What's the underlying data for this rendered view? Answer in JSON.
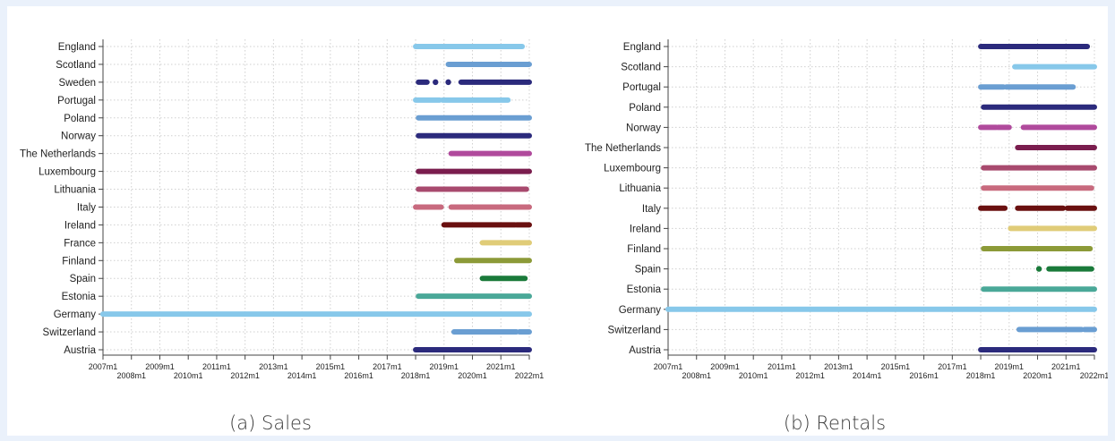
{
  "figure": {
    "captions": [
      "(a) Sales",
      "(b) Rentals"
    ]
  },
  "colors": {
    "England": "#87c8ea",
    "England_rentals": "#2b2a7c",
    "Scotland": "#6a9ed2",
    "Scotland_rentals": "#87c8ea",
    "Sweden": "#2b2a7c",
    "Portugal": "#87c8ea",
    "Portugal_rentals": "#6a9ed2",
    "Poland": "#6a9ed2",
    "Poland_rentals": "#2b2a7c",
    "Norway": "#2b2a7c",
    "Norway_rentals": "#b04a9c",
    "The Netherlands": "#b04a9c",
    "The Netherlands_rentals": "#7a1d4e",
    "Luxembourg": "#7a1d4e",
    "Luxembourg_rentals": "#a84a6e",
    "Lithuania": "#a84a6e",
    "Lithuania_rentals": "#c86a7e",
    "Italy": "#c86a7e",
    "Italy_rentals": "#6a1010",
    "Ireland": "#6a1010",
    "Ireland_rentals": "#e0cc78",
    "France": "#e0cc78",
    "Finland": "#8c9a38",
    "Spain": "#1a7a3a",
    "Estonia": "#4aa898",
    "Germany": "#87c8ea",
    "Switzerland": "#6a9ed2",
    "Austria": "#2b2a7c",
    "grid": "#cfcfcf",
    "axis": "#444444",
    "text": "#222222"
  },
  "chart_data": [
    {
      "type": "timeline",
      "caption": "(a) Sales",
      "x_ticks_upper": [
        "2007m1",
        "2009m1",
        "2011m1",
        "2013m1",
        "2015m1",
        "2017m1",
        "2019m1",
        "2021m1"
      ],
      "x_ticks_lower": [
        "2008m1",
        "2010m1",
        "2012m1",
        "2014m1",
        "2016m1",
        "2018m1",
        "2020m1",
        "2022m1"
      ],
      "xlim": [
        2007.0,
        2022.0
      ],
      "grid": true,
      "series": [
        {
          "name": "England",
          "color": "#87c8ea",
          "segments": [
            [
              2018.0,
              2021.75
            ]
          ]
        },
        {
          "name": "Scotland",
          "color": "#6a9ed2",
          "segments": [
            [
              2019.15,
              2022.0
            ]
          ]
        },
        {
          "name": "Sweden",
          "color": "#2b2a7c",
          "segments": [
            [
              2018.1,
              2018.4
            ],
            [
              2019.6,
              2022.0
            ]
          ],
          "dots": [
            2018.7,
            2019.15
          ]
        },
        {
          "name": "Portugal",
          "color": "#87c8ea",
          "segments": [
            [
              2018.0,
              2018.85
            ],
            [
              2018.95,
              2021.25
            ]
          ]
        },
        {
          "name": "Poland",
          "color": "#6a9ed2",
          "segments": [
            [
              2018.1,
              2022.0
            ]
          ]
        },
        {
          "name": "Norway",
          "color": "#2b2a7c",
          "segments": [
            [
              2018.1,
              2022.0
            ]
          ]
        },
        {
          "name": "The Netherlands",
          "color": "#b04a9c",
          "segments": [
            [
              2019.25,
              2022.0
            ]
          ]
        },
        {
          "name": "Luxembourg",
          "color": "#7a1d4e",
          "segments": [
            [
              2018.1,
              2022.0
            ]
          ]
        },
        {
          "name": "Lithuania",
          "color": "#a84a6e",
          "segments": [
            [
              2018.1,
              2021.9
            ]
          ]
        },
        {
          "name": "Italy",
          "color": "#c86a7e",
          "segments": [
            [
              2018.0,
              2018.9
            ],
            [
              2019.25,
              2022.0
            ]
          ]
        },
        {
          "name": "Ireland",
          "color": "#6a1010",
          "segments": [
            [
              2019.0,
              2021.5
            ],
            [
              2021.55,
              2022.0
            ]
          ]
        },
        {
          "name": "France",
          "color": "#e0cc78",
          "segments": [
            [
              2020.35,
              2022.0
            ]
          ]
        },
        {
          "name": "Finland",
          "color": "#8c9a38",
          "segments": [
            [
              2019.45,
              2022.0
            ]
          ]
        },
        {
          "name": "Spain",
          "color": "#1a7a3a",
          "segments": [
            [
              2020.35,
              2021.85
            ]
          ]
        },
        {
          "name": "Estonia",
          "color": "#4aa898",
          "segments": [
            [
              2018.1,
              2022.0
            ]
          ]
        },
        {
          "name": "Germany",
          "color": "#87c8ea",
          "segments": [
            [
              2007.0,
              2022.0
            ]
          ]
        },
        {
          "name": "Switzerland",
          "color": "#6a9ed2",
          "segments": [
            [
              2019.35,
              2021.55
            ],
            [
              2021.65,
              2022.0
            ]
          ]
        },
        {
          "name": "Austria",
          "color": "#2b2a7c",
          "segments": [
            [
              2018.0,
              2022.0
            ]
          ]
        }
      ]
    },
    {
      "type": "timeline",
      "caption": "(b) Rentals",
      "x_ticks_upper": [
        "2007m1",
        "2009m1",
        "2011m1",
        "2013m1",
        "2015m1",
        "2017m1",
        "2019m1",
        "2021m1"
      ],
      "x_ticks_lower": [
        "2008m1",
        "2010m1",
        "2012m1",
        "2014m1",
        "2016m1",
        "2018m1",
        "2020m1",
        "2022m1"
      ],
      "xlim": [
        2007.0,
        2022.0
      ],
      "grid": true,
      "series": [
        {
          "name": "England",
          "color": "#2b2a7c",
          "segments": [
            [
              2018.0,
              2021.75
            ]
          ]
        },
        {
          "name": "Scotland",
          "color": "#87c8ea",
          "segments": [
            [
              2019.2,
              2022.0
            ]
          ]
        },
        {
          "name": "Portugal",
          "color": "#6a9ed2",
          "segments": [
            [
              2018.0,
              2018.8
            ],
            [
              2018.9,
              2021.25
            ]
          ]
        },
        {
          "name": "Poland",
          "color": "#2b2a7c",
          "segments": [
            [
              2018.1,
              2022.0
            ]
          ]
        },
        {
          "name": "Norway",
          "color": "#b04a9c",
          "segments": [
            [
              2018.0,
              2018.55
            ],
            [
              2018.6,
              2019.0
            ],
            [
              2019.5,
              2022.0
            ]
          ]
        },
        {
          "name": "The Netherlands",
          "color": "#7a1d4e",
          "segments": [
            [
              2019.3,
              2022.0
            ]
          ]
        },
        {
          "name": "Luxembourg",
          "color": "#a84a6e",
          "segments": [
            [
              2018.1,
              2022.0
            ]
          ]
        },
        {
          "name": "Lithuania",
          "color": "#c86a7e",
          "segments": [
            [
              2018.1,
              2021.9
            ]
          ]
        },
        {
          "name": "Italy",
          "color": "#6a1010",
          "segments": [
            [
              2018.0,
              2018.85
            ],
            [
              2019.3,
              2020.9
            ],
            [
              2021.05,
              2022.0
            ]
          ]
        },
        {
          "name": "Ireland",
          "color": "#e0cc78",
          "segments": [
            [
              2019.05,
              2022.0
            ]
          ]
        },
        {
          "name": "Finland",
          "color": "#8c9a38",
          "segments": [
            [
              2018.1,
              2021.85
            ]
          ]
        },
        {
          "name": "Spain",
          "color": "#1a7a3a",
          "segments": [
            [
              2020.4,
              2021.9
            ]
          ],
          "dots": [
            2020.05
          ]
        },
        {
          "name": "Estonia",
          "color": "#4aa898",
          "segments": [
            [
              2018.1,
              2022.0
            ]
          ]
        },
        {
          "name": "Germany",
          "color": "#87c8ea",
          "segments": [
            [
              2007.0,
              2022.0
            ]
          ]
        },
        {
          "name": "Switzerland",
          "color": "#6a9ed2",
          "segments": [
            [
              2019.35,
              2021.55
            ],
            [
              2021.65,
              2022.0
            ]
          ]
        },
        {
          "name": "Austria",
          "color": "#2b2a7c",
          "segments": [
            [
              2018.0,
              2022.0
            ]
          ]
        }
      ]
    }
  ]
}
